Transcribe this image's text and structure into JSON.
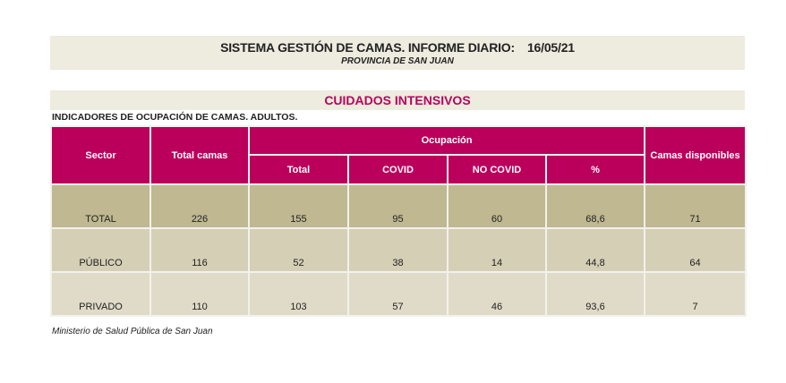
{
  "header": {
    "title": "SISTEMA GESTIÓN DE CAMAS. INFORME DIARIO:",
    "date": "16/05/21",
    "subtitle": "PROVINCIA DE SAN JUAN"
  },
  "section": {
    "title": "CUIDADOS INTENSIVOS",
    "subtitle": "INDICADORES DE OCUPACIÓN DE CAMAS. ADULTOS."
  },
  "table": {
    "headers": {
      "sector": "Sector",
      "total_camas": "Total camas",
      "ocupacion": "Ocupación",
      "total": "Total",
      "covid": "COVID",
      "no_covid": "NO COVID",
      "pct": "%",
      "disponibles": "Camas disponibles"
    },
    "rows": [
      {
        "sector": "TOTAL",
        "total_camas": "226",
        "total": "155",
        "covid": "95",
        "no_covid": "60",
        "pct": "68,6",
        "disponibles": "71"
      },
      {
        "sector": "PÚBLICO",
        "total_camas": "116",
        "total": "52",
        "covid": "38",
        "no_covid": "14",
        "pct": "44,8",
        "disponibles": "64"
      },
      {
        "sector": "PRIVADO",
        "total_camas": "110",
        "total": "103",
        "covid": "57",
        "no_covid": "46",
        "pct": "93,6",
        "disponibles": "7"
      }
    ]
  },
  "footer": "Ministerio de Salud Pública de San Juan"
}
